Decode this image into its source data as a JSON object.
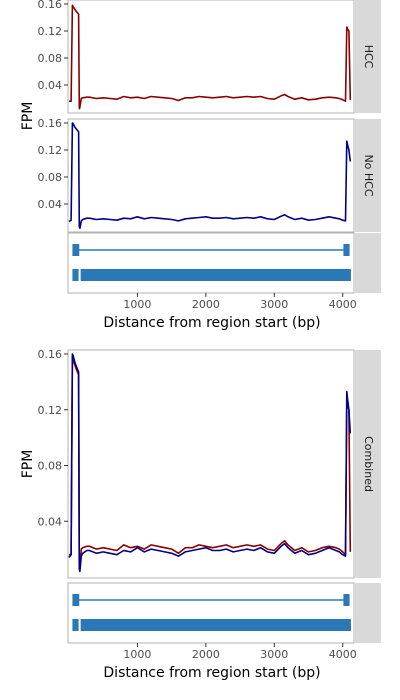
{
  "colors": {
    "hcc": "#8b0000",
    "no_hcc": "#00008b",
    "gene_model": "#2a78b5",
    "strip_bg": "#d9d9d9",
    "panel_border": "#b3b3b3"
  },
  "chart_data": [
    {
      "type": "line",
      "facets": [
        "HCC",
        "No HCC"
      ],
      "xlabel": "Distance from region start (bp)",
      "ylabel": "FPM",
      "xlim": [
        0,
        4150
      ],
      "x_ticks": [
        1000,
        2000,
        3000,
        4000
      ],
      "x_tick_labels": [
        "1000",
        "2000",
        "3000",
        "4000"
      ],
      "ylim": [
        0.0,
        0.16
      ],
      "y_ticks": [
        0.04,
        0.08,
        0.12,
        0.16
      ],
      "y_tick_labels": [
        "0.04",
        "0.08",
        "0.12",
        "0.16"
      ],
      "grid": false,
      "series": [
        {
          "facet": "HCC",
          "color": "#8b0000",
          "x": [
            0,
            30,
            50,
            60,
            80,
            100,
            140,
            150,
            155,
            180,
            200,
            260,
            300,
            400,
            500,
            600,
            700,
            800,
            900,
            1000,
            1100,
            1200,
            1300,
            1400,
            1500,
            1600,
            1700,
            1800,
            1900,
            2000,
            2100,
            2200,
            2300,
            2400,
            2500,
            2600,
            2700,
            2800,
            2900,
            3000,
            3100,
            3150,
            3200,
            3300,
            3400,
            3500,
            3600,
            3700,
            3800,
            3900,
            3950,
            4000,
            4040,
            4060,
            4070,
            4090,
            4110
          ],
          "y": [
            0.016,
            0.016,
            0.158,
            0.156,
            0.153,
            0.15,
            0.145,
            0.006,
            0.005,
            0.02,
            0.021,
            0.022,
            0.022,
            0.02,
            0.021,
            0.02,
            0.019,
            0.023,
            0.021,
            0.022,
            0.02,
            0.023,
            0.022,
            0.021,
            0.02,
            0.017,
            0.021,
            0.021,
            0.023,
            0.022,
            0.021,
            0.022,
            0.023,
            0.021,
            0.022,
            0.023,
            0.022,
            0.023,
            0.02,
            0.019,
            0.024,
            0.026,
            0.023,
            0.019,
            0.021,
            0.018,
            0.019,
            0.021,
            0.022,
            0.021,
            0.02,
            0.018,
            0.016,
            0.126,
            0.123,
            0.12,
            0.018
          ]
        },
        {
          "facet": "No HCC",
          "color": "#00008b",
          "x": [
            0,
            30,
            50,
            60,
            80,
            100,
            140,
            150,
            160,
            180,
            200,
            260,
            300,
            400,
            500,
            600,
            700,
            800,
            900,
            1000,
            1100,
            1200,
            1300,
            1400,
            1500,
            1600,
            1700,
            1800,
            1900,
            2000,
            2100,
            2200,
            2300,
            2400,
            2500,
            2600,
            2700,
            2800,
            2900,
            3000,
            3100,
            3150,
            3200,
            3300,
            3400,
            3500,
            3600,
            3700,
            3800,
            3900,
            3950,
            4000,
            4040,
            4060,
            4070,
            4090,
            4110
          ],
          "y": [
            0.014,
            0.016,
            0.16,
            0.159,
            0.155,
            0.152,
            0.147,
            0.006,
            0.004,
            0.015,
            0.017,
            0.019,
            0.019,
            0.017,
            0.018,
            0.017,
            0.016,
            0.019,
            0.018,
            0.021,
            0.018,
            0.02,
            0.019,
            0.018,
            0.017,
            0.015,
            0.018,
            0.019,
            0.02,
            0.021,
            0.019,
            0.019,
            0.02,
            0.018,
            0.019,
            0.02,
            0.019,
            0.021,
            0.018,
            0.017,
            0.022,
            0.024,
            0.021,
            0.017,
            0.019,
            0.016,
            0.017,
            0.019,
            0.021,
            0.019,
            0.018,
            0.016,
            0.015,
            0.133,
            0.128,
            0.12,
            0.103
          ]
        }
      ]
    },
    {
      "type": "line",
      "facets": [
        "Combined"
      ],
      "xlabel": "Distance from region start (bp)",
      "ylabel": "FPM",
      "xlim": [
        0,
        4150
      ],
      "x_ticks": [
        1000,
        2000,
        3000,
        4000
      ],
      "x_tick_labels": [
        "1000",
        "2000",
        "3000",
        "4000"
      ],
      "ylim": [
        0.0,
        0.16
      ],
      "y_ticks": [
        0.04,
        0.08,
        0.12,
        0.16
      ],
      "y_tick_labels": [
        "0.04",
        "0.08",
        "0.12",
        "0.16"
      ],
      "grid": false,
      "series": [
        {
          "facet": "Combined",
          "color": "#8b0000",
          "x": [
            0,
            30,
            50,
            60,
            80,
            100,
            140,
            150,
            155,
            180,
            200,
            260,
            300,
            400,
            500,
            600,
            700,
            800,
            900,
            1000,
            1100,
            1200,
            1300,
            1400,
            1500,
            1600,
            1700,
            1800,
            1900,
            2000,
            2100,
            2200,
            2300,
            2400,
            2500,
            2600,
            2700,
            2800,
            2900,
            3000,
            3100,
            3150,
            3200,
            3300,
            3400,
            3500,
            3600,
            3700,
            3800,
            3900,
            3950,
            4000,
            4040,
            4060,
            4070,
            4090,
            4110
          ],
          "y": [
            0.016,
            0.016,
            0.158,
            0.156,
            0.153,
            0.15,
            0.145,
            0.006,
            0.005,
            0.02,
            0.021,
            0.022,
            0.022,
            0.02,
            0.021,
            0.02,
            0.019,
            0.023,
            0.021,
            0.022,
            0.02,
            0.023,
            0.022,
            0.021,
            0.02,
            0.017,
            0.021,
            0.021,
            0.023,
            0.022,
            0.021,
            0.022,
            0.023,
            0.021,
            0.022,
            0.023,
            0.022,
            0.023,
            0.02,
            0.019,
            0.024,
            0.026,
            0.023,
            0.019,
            0.021,
            0.018,
            0.019,
            0.021,
            0.022,
            0.021,
            0.02,
            0.018,
            0.016,
            0.126,
            0.123,
            0.12,
            0.018
          ]
        },
        {
          "facet": "Combined",
          "color": "#00008b",
          "x": [
            0,
            30,
            50,
            60,
            80,
            100,
            140,
            150,
            160,
            180,
            200,
            260,
            300,
            400,
            500,
            600,
            700,
            800,
            900,
            1000,
            1100,
            1200,
            1300,
            1400,
            1500,
            1600,
            1700,
            1800,
            1900,
            2000,
            2100,
            2200,
            2300,
            2400,
            2500,
            2600,
            2700,
            2800,
            2900,
            3000,
            3100,
            3150,
            3200,
            3300,
            3400,
            3500,
            3600,
            3700,
            3800,
            3900,
            3950,
            4000,
            4040,
            4060,
            4070,
            4090,
            4110
          ],
          "y": [
            0.014,
            0.016,
            0.16,
            0.159,
            0.155,
            0.152,
            0.147,
            0.006,
            0.004,
            0.015,
            0.017,
            0.019,
            0.019,
            0.017,
            0.018,
            0.017,
            0.016,
            0.019,
            0.018,
            0.021,
            0.018,
            0.02,
            0.019,
            0.018,
            0.017,
            0.015,
            0.018,
            0.019,
            0.02,
            0.021,
            0.019,
            0.019,
            0.02,
            0.018,
            0.019,
            0.02,
            0.019,
            0.021,
            0.018,
            0.017,
            0.022,
            0.024,
            0.021,
            0.017,
            0.019,
            0.016,
            0.017,
            0.019,
            0.021,
            0.019,
            0.018,
            0.016,
            0.015,
            0.133,
            0.128,
            0.12,
            0.103
          ]
        }
      ]
    }
  ],
  "gene_model": {
    "intron_line": [
      110,
      4100
    ],
    "top_exons": [
      [
        50,
        150
      ],
      [
        4010,
        4100
      ]
    ],
    "bottom_exons": [
      [
        50,
        140
      ],
      [
        170,
        4120
      ]
    ]
  }
}
